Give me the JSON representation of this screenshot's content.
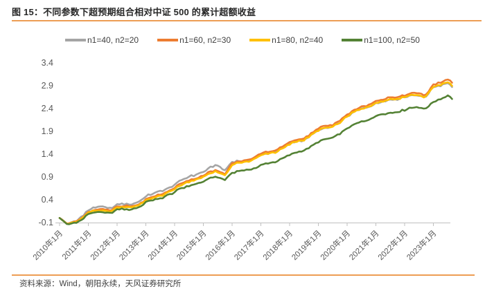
{
  "title": "图 15：不同参数下超预期组合相对中证 500 的累计超额收益",
  "source_note": "资料来源：Wind，朝阳永续，天风证券研究所",
  "colors": {
    "accent_rule": "#ED9D53",
    "axis": "#BFBFBF",
    "tick_label": "#595959",
    "title_text": "#262626",
    "footer_text": "#3F3F3F"
  },
  "chart_data": {
    "type": "line",
    "title": "不同参数下超预期组合相对中证 500 的累计超额收益",
    "xlabel": "",
    "ylabel": "",
    "grid": false,
    "legend_position": "top",
    "y_ticks": [
      -0.1,
      0.4,
      0.9,
      1.4,
      1.9,
      2.4,
      2.9,
      3.4
    ],
    "ylim": [
      -0.1,
      3.4
    ],
    "x_tick_labels": [
      "2010年1月",
      "2011年1月",
      "2012年1月",
      "2013年1月",
      "2014年1月",
      "2015年1月",
      "2016年1月",
      "2017年1月",
      "2018年1月",
      "2019年1月",
      "2020年1月",
      "2021年1月",
      "2022年1月",
      "2023年1月"
    ],
    "x_start_year": 2010.0,
    "x_end_year": 2023.65,
    "x_anchor_years": [
      2010.0,
      2010.25,
      2010.6,
      2011.0,
      2011.4,
      2011.75,
      2012.0,
      2012.5,
      2012.8,
      2013.0,
      2013.5,
      2014.0,
      2014.5,
      2015.0,
      2015.45,
      2015.75,
      2016.0,
      2016.5,
      2017.0,
      2017.5,
      2018.0,
      2018.5,
      2019.0,
      2019.5,
      2020.0,
      2020.5,
      2021.0,
      2021.5,
      2022.0,
      2022.4,
      2022.7,
      2023.0,
      2023.3,
      2023.5,
      2023.65
    ],
    "series": [
      {
        "name": "n1=40, n2=20",
        "color": "#A5A5A5",
        "values": [
          0.0,
          -0.13,
          -0.05,
          0.16,
          0.26,
          0.22,
          0.28,
          0.32,
          0.38,
          0.46,
          0.6,
          0.72,
          0.92,
          1.0,
          1.18,
          1.05,
          1.22,
          1.26,
          1.37,
          1.45,
          1.62,
          1.72,
          1.92,
          2.0,
          2.22,
          2.4,
          2.5,
          2.6,
          2.64,
          2.7,
          2.65,
          2.86,
          2.9,
          2.98,
          2.9
        ]
      },
      {
        "name": "n1=60, n2=30",
        "color": "#ED7D31",
        "values": [
          0.0,
          -0.12,
          -0.06,
          0.12,
          0.2,
          0.17,
          0.23,
          0.27,
          0.32,
          0.4,
          0.52,
          0.65,
          0.84,
          0.92,
          1.06,
          0.97,
          1.2,
          1.28,
          1.4,
          1.49,
          1.65,
          1.76,
          1.96,
          2.04,
          2.26,
          2.44,
          2.55,
          2.65,
          2.69,
          2.75,
          2.7,
          2.92,
          2.97,
          3.06,
          2.98
        ]
      },
      {
        "name": "n1=80, n2=40",
        "color": "#FFC000",
        "values": [
          0.0,
          -0.13,
          -0.07,
          0.1,
          0.18,
          0.15,
          0.21,
          0.25,
          0.3,
          0.37,
          0.49,
          0.62,
          0.81,
          0.89,
          1.03,
          0.94,
          1.16,
          1.24,
          1.36,
          1.45,
          1.61,
          1.72,
          1.92,
          2.0,
          2.22,
          2.4,
          2.51,
          2.61,
          2.65,
          2.71,
          2.66,
          2.87,
          2.92,
          3.0,
          2.92
        ]
      },
      {
        "name": "n1=100, n2=50",
        "color": "#548235",
        "values": [
          0.0,
          -0.14,
          -0.09,
          0.07,
          0.14,
          0.11,
          0.17,
          0.2,
          0.25,
          0.33,
          0.44,
          0.56,
          0.72,
          0.79,
          0.92,
          0.84,
          0.98,
          1.06,
          1.14,
          1.24,
          1.38,
          1.5,
          1.66,
          1.76,
          1.96,
          2.12,
          2.22,
          2.32,
          2.36,
          2.44,
          2.4,
          2.55,
          2.6,
          2.7,
          2.62
        ]
      }
    ]
  }
}
